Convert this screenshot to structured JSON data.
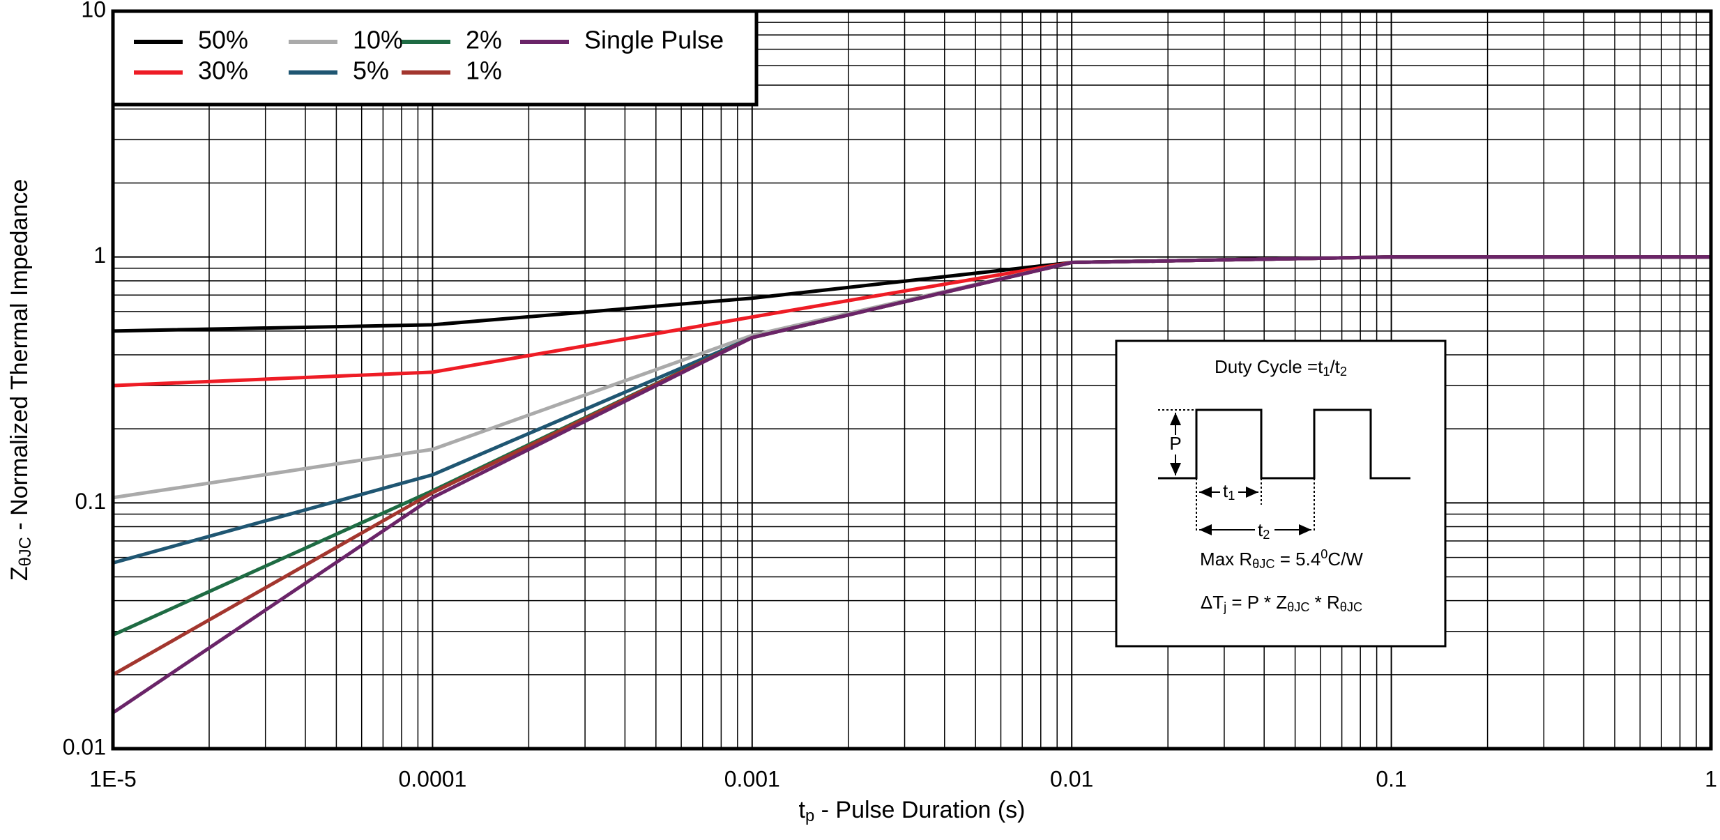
{
  "chart_data": {
    "type": "line",
    "x_label": [
      "t",
      "p",
      " - Pulse Duration (s)"
    ],
    "y_label": [
      "Z",
      "θJC",
      " - Normalized Thermal Impedance"
    ],
    "x": [
      1e-05,
      0.0001,
      0.001,
      0.01,
      0.1,
      1
    ],
    "series": [
      {
        "name": "50%",
        "color": "#000000",
        "values": [
          0.5,
          0.53,
          0.68,
          0.95,
          1.0,
          1.0
        ]
      },
      {
        "name": "30%",
        "color": "#ee1c25",
        "values": [
          0.3,
          0.34,
          0.57,
          0.95,
          1.0,
          1.0
        ]
      },
      {
        "name": "10%",
        "color": "#aaaaaa",
        "values": [
          0.105,
          0.165,
          0.48,
          0.95,
          1.0,
          1.0
        ]
      },
      {
        "name": "5%",
        "color": "#1f5672",
        "values": [
          0.057,
          0.13,
          0.47,
          0.95,
          1.0,
          1.0
        ]
      },
      {
        "name": "2%",
        "color": "#1e6b43",
        "values": [
          0.029,
          0.112,
          0.47,
          0.95,
          1.0,
          1.0
        ]
      },
      {
        "name": "1%",
        "color": "#a3362e",
        "values": [
          0.02,
          0.11,
          0.47,
          0.95,
          1.0,
          1.0
        ]
      },
      {
        "name": "Single Pulse",
        "color": "#6a2468",
        "values": [
          0.014,
          0.105,
          0.47,
          0.95,
          1.0,
          1.0
        ]
      }
    ],
    "xlim": [
      1e-05,
      1
    ],
    "ylim": [
      0.01,
      10
    ],
    "xticks": [
      {
        "value": 1e-05,
        "label": "1E-5"
      },
      0.0001,
      0.001,
      0.01,
      0.1,
      1
    ],
    "yticks": [
      0.01,
      0.1,
      1,
      10
    ],
    "log_x": true,
    "log_y": true,
    "grid": true,
    "minor_grid": true,
    "legend": "upper left",
    "inset": {
      "title": [
        "Duty Cycle =t",
        "1",
        "/t",
        "2"
      ],
      "pulse_height": "P",
      "t1": [
        "t",
        "1"
      ],
      "t2": [
        "t",
        "2"
      ],
      "max_r": [
        "Max R",
        "θJC",
        " = 5.4",
        "0",
        "C/W"
      ],
      "delta_t": [
        "ΔT",
        "j",
        " = P * Z",
        "θJC",
        " * R",
        "θJC"
      ]
    }
  }
}
